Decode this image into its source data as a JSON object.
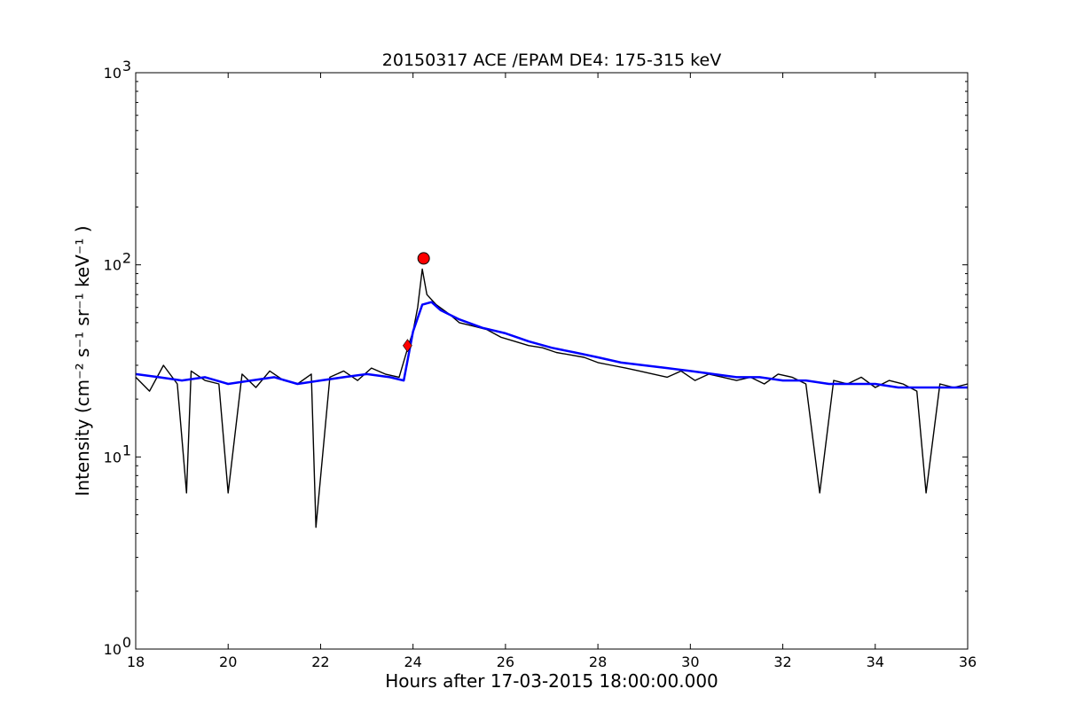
{
  "chart_data": {
    "type": "line",
    "title": "20150317 ACE /EPAM DE4: 175-315 keV",
    "xlabel": "Hours after 17-03-2015 18:00:00.000",
    "ylabel": "Intensity (cm⁻² s⁻¹ sr⁻¹ keV⁻¹ )",
    "xlim": [
      18,
      36
    ],
    "ylim": [
      1,
      1000
    ],
    "yscale": "log",
    "x_ticks": [
      18,
      20,
      22,
      24,
      26,
      28,
      30,
      32,
      34,
      36
    ],
    "x_tick_labels": [
      "18",
      "20",
      "22",
      "24",
      "26",
      "28",
      "30",
      "32",
      "34",
      "36"
    ],
    "y_tick_labels": [
      {
        "value": 1,
        "base": "10",
        "exp": "0"
      },
      {
        "value": 10,
        "base": "10",
        "exp": "1"
      },
      {
        "value": 100,
        "base": "10",
        "exp": "2"
      },
      {
        "value": 1000,
        "base": "10",
        "exp": "3"
      }
    ],
    "grid": false,
    "series": [
      {
        "role": "raw",
        "color": "#000000",
        "x": [
          18.0,
          18.3,
          18.6,
          18.9,
          19.1,
          19.2,
          19.5,
          19.8,
          20.0,
          20.3,
          20.6,
          20.9,
          21.2,
          21.5,
          21.8,
          21.9,
          22.2,
          22.5,
          22.8,
          23.1,
          23.4,
          23.7,
          23.9,
          24.0,
          24.1,
          24.2,
          24.3,
          24.5,
          24.8,
          25.0,
          25.3,
          25.6,
          25.9,
          26.2,
          26.5,
          26.8,
          27.1,
          27.4,
          27.7,
          28.0,
          28.3,
          28.6,
          28.9,
          29.2,
          29.5,
          29.8,
          30.1,
          30.4,
          30.7,
          31.0,
          31.3,
          31.6,
          31.9,
          32.2,
          32.5,
          32.8,
          33.1,
          33.4,
          33.7,
          34.0,
          34.3,
          34.6,
          34.9,
          35.1,
          35.4,
          35.7,
          36.0
        ],
        "y": [
          26,
          22,
          30,
          24,
          6.5,
          28,
          25,
          24,
          6.5,
          27,
          23,
          28,
          25,
          24,
          27,
          4.3,
          26,
          28,
          25,
          29,
          27,
          26,
          38,
          45,
          60,
          95,
          70,
          62,
          55,
          50,
          48,
          46,
          42,
          40,
          38,
          37,
          35,
          34,
          33,
          31,
          30,
          29,
          28,
          27,
          26,
          28,
          25,
          27,
          26,
          25,
          26,
          24,
          27,
          26,
          24,
          6.5,
          25,
          24,
          26,
          23,
          25,
          24,
          22,
          6.5,
          24,
          23,
          24
        ]
      },
      {
        "role": "smoothed",
        "color": "#0000ff",
        "x": [
          18.0,
          18.5,
          19.0,
          19.5,
          20.0,
          20.5,
          21.0,
          21.5,
          22.0,
          22.5,
          23.0,
          23.5,
          23.8,
          24.0,
          24.2,
          24.4,
          24.6,
          25.0,
          25.5,
          26.0,
          26.5,
          27.0,
          27.5,
          28.0,
          28.5,
          29.0,
          29.5,
          30.0,
          30.5,
          31.0,
          31.5,
          32.0,
          32.5,
          33.0,
          33.5,
          34.0,
          34.5,
          35.0,
          35.5,
          36.0
        ],
        "y": [
          27,
          26,
          25,
          26,
          24,
          25,
          26,
          24,
          25,
          26,
          27,
          26,
          25,
          45,
          62,
          64,
          58,
          52,
          47,
          44,
          40,
          37,
          35,
          33,
          31,
          30,
          29,
          28,
          27,
          26,
          26,
          25,
          25,
          24,
          24,
          24,
          23,
          23,
          23,
          23
        ]
      }
    ],
    "markers": [
      {
        "type": "diamond",
        "color": "#ff0000",
        "x": 23.88,
        "y": 38
      },
      {
        "type": "circle",
        "color": "#ff0000",
        "x": 24.23,
        "y": 108
      }
    ]
  }
}
